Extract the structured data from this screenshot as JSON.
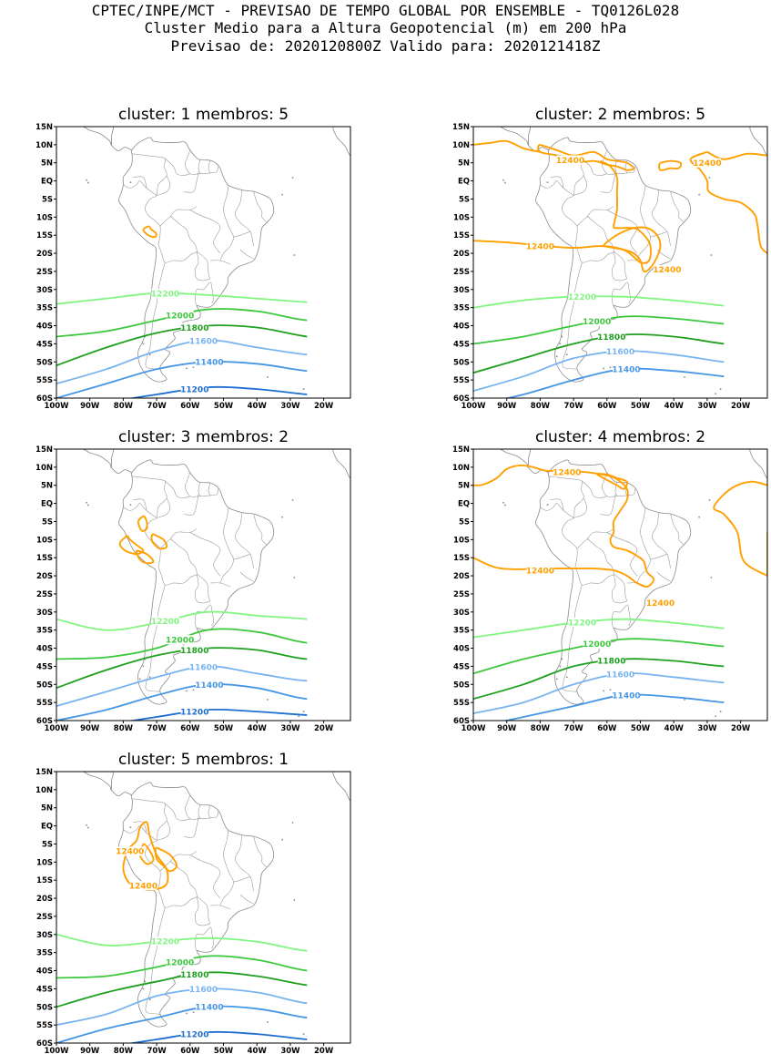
{
  "header": {
    "line1": "CPTEC/INPE/MCT - PREVISAO DE TEMPO GLOBAL POR ENSEMBLE - TQ0126L028",
    "line2": "Cluster Medio para a Altura Geopotencial (m) em 200 hPa",
    "line3": "Previsao de: 2020120800Z    Valido para: 2020121418Z"
  },
  "axes": {
    "lat_labels": [
      "15N",
      "10N",
      "5N",
      "EQ",
      "5S",
      "10S",
      "15S",
      "20S",
      "25S",
      "30S",
      "35S",
      "40S",
      "45S",
      "50S",
      "55S",
      "60S"
    ],
    "lon_labels": [
      "100W",
      "90W",
      "80W",
      "70W",
      "60W",
      "50W",
      "40W",
      "30W",
      "20W"
    ]
  },
  "contour_colors": {
    "12400": "#ffa000",
    "12200": "#82f582",
    "12000": "#3cc83c",
    "11800": "#1ea01e",
    "11600": "#78b4f0",
    "11400": "#4696e6",
    "11200": "#1e6ed2"
  },
  "panels": [
    {
      "title": "cluster: 1   membros: 5",
      "contours": [
        {
          "label": "12200",
          "lat": [
            -34,
            -32.5,
            -31,
            -31.5,
            -32.5,
            -33.5,
            -34,
            -35
          ]
        },
        {
          "label": "12000",
          "lat": [
            -43,
            -41.5,
            -38.5,
            -35.5,
            -36,
            -38.5,
            -38,
            -40
          ]
        },
        {
          "label": "11800",
          "lat": [
            -51,
            -46,
            -42,
            -40,
            -40.5,
            -43,
            -44,
            -45
          ]
        },
        {
          "label": "11600",
          "lat": [
            -56,
            -52,
            -47,
            -44,
            -46,
            -48,
            -48.5,
            -49
          ]
        },
        {
          "label": "11400",
          "lat": [
            -60,
            -56,
            -52,
            -50,
            -50.5,
            -52.5,
            -53,
            -53.5
          ]
        },
        {
          "label": "11200",
          "lat": [
            -62,
            -61,
            -59,
            -57,
            -57.5,
            -59,
            -60,
            -61
          ]
        }
      ]
    },
    {
      "title": "cluster: 2   membros: 5",
      "contours": [
        {
          "label": "12200",
          "lat": [
            -35,
            -33,
            -32,
            -32,
            -33,
            -34.5,
            -36,
            -37
          ]
        },
        {
          "label": "12000",
          "lat": [
            -45,
            -43,
            -40,
            -37.5,
            -38,
            -39.5,
            -40.5,
            -41
          ]
        },
        {
          "label": "11800",
          "lat": [
            -53,
            -49,
            -45,
            -42.5,
            -43,
            -45,
            -46,
            -47
          ]
        },
        {
          "label": "11600",
          "lat": [
            -58,
            -54,
            -49,
            -47,
            -48,
            -50,
            -51,
            -52
          ]
        },
        {
          "label": "11400",
          "lat": [
            -62,
            -59,
            -55,
            -52,
            -52.5,
            -54,
            -55,
            -56
          ]
        }
      ]
    },
    {
      "title": "cluster: 3   membros: 2",
      "contours": [
        {
          "label": "12200",
          "lat": [
            -32,
            -35,
            -33,
            -30,
            -31,
            -32,
            -33.5,
            -34
          ]
        },
        {
          "label": "12000",
          "lat": [
            -43,
            -42.5,
            -40,
            -35,
            -35.5,
            -38.5,
            -38,
            -40
          ]
        },
        {
          "label": "11800",
          "lat": [
            -51,
            -46,
            -42,
            -40,
            -40.5,
            -43,
            -42,
            -44
          ]
        },
        {
          "label": "11600",
          "lat": [
            -56,
            -52,
            -48,
            -45,
            -47,
            -49,
            -48,
            -50
          ]
        },
        {
          "label": "11400",
          "lat": [
            -60,
            -57,
            -53,
            -50,
            -51,
            -54,
            -53,
            -54
          ]
        },
        {
          "label": "11200",
          "lat": [
            -62,
            -61,
            -59,
            -57,
            -57.5,
            -58.5,
            -59,
            -60
          ]
        }
      ]
    },
    {
      "title": "cluster: 4   membros: 2",
      "contours": [
        {
          "label": "12200",
          "lat": [
            -37,
            -35,
            -33,
            -32,
            -33,
            -34.5,
            -35.5,
            -36
          ]
        },
        {
          "label": "12000",
          "lat": [
            -47,
            -43,
            -40,
            -37.5,
            -38,
            -39.5,
            -40,
            -40
          ]
        },
        {
          "label": "11800",
          "lat": [
            -54,
            -50,
            -45,
            -43,
            -43.5,
            -45,
            -45,
            -45
          ]
        },
        {
          "label": "11600",
          "lat": [
            -58,
            -55,
            -50,
            -47,
            -48,
            -49.5,
            -50,
            -51
          ]
        },
        {
          "label": "11400",
          "lat": [
            -62,
            -59,
            -56,
            -53,
            -53.5,
            -55,
            -56,
            -57
          ]
        }
      ]
    },
    {
      "title": "cluster: 5   membros: 1",
      "contours": [
        {
          "label": "12200",
          "lat": [
            -30,
            -33,
            -32,
            -31,
            -32,
            -34.5,
            -34,
            -33.5
          ]
        },
        {
          "label": "12000",
          "lat": [
            -42,
            -41.5,
            -39,
            -36,
            -37,
            -40,
            -40,
            -41
          ]
        },
        {
          "label": "11800",
          "lat": [
            -50,
            -46,
            -43,
            -40.5,
            -41.5,
            -44,
            -45,
            -46
          ]
        },
        {
          "label": "11600",
          "lat": [
            -55,
            -52,
            -47,
            -45,
            -46,
            -49,
            -49,
            -50
          ]
        },
        {
          "label": "11400",
          "lat": [
            -60,
            -56,
            -53,
            -50,
            -50.5,
            -53,
            -54,
            -55
          ]
        },
        {
          "label": "11200",
          "lat": [
            -62,
            -61,
            -59,
            -57,
            -57.5,
            -59,
            -60,
            -61
          ]
        }
      ]
    }
  ],
  "orange_labels": {
    "p2": [
      "12400",
      "12400",
      "12400",
      "12400"
    ],
    "p4": [
      "12400",
      "12400",
      "12400"
    ],
    "p5": [
      "12400",
      "12400"
    ]
  }
}
